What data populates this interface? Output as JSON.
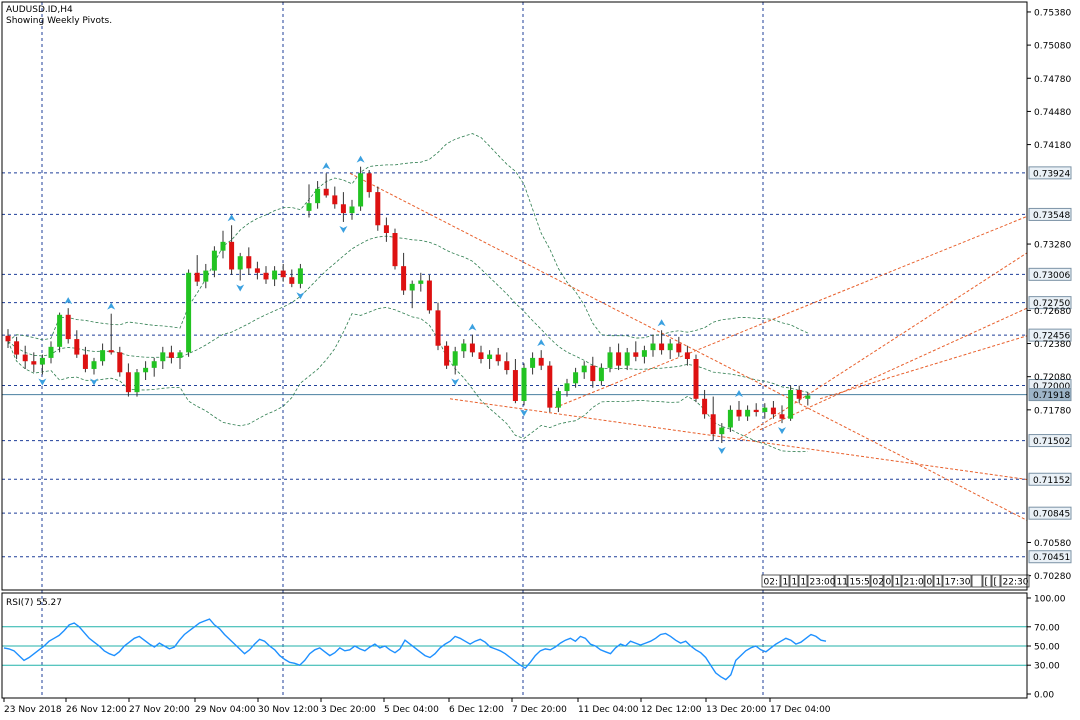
{
  "header": {
    "symbol": "AUDUSD.ID,H4",
    "subtitle": "Showing Weekly Pivots."
  },
  "rsi_panel": {
    "label": "RSI(7) 55.27",
    "ticks": [
      "100.00",
      "70.00",
      "50.00",
      "30.00",
      "0.00"
    ],
    "levels": [
      70,
      50,
      30
    ]
  },
  "price_axis": {
    "ticks": [
      "0.75380",
      "0.75080",
      "0.74780",
      "0.74480",
      "0.74180",
      "0.73280",
      "0.72680",
      "0.72380",
      "0.72080",
      "0.71780",
      "0.70580",
      "0.70280"
    ]
  },
  "pivot_labels": [
    "0.73924",
    "0.73548",
    "0.73006",
    "0.72750",
    "0.72456",
    "0.72000",
    "0.71918",
    "0.71502",
    "0.71152",
    "0.70845",
    "0.70451"
  ],
  "time_labels": [
    "23 Nov 2018",
    "26 Nov 12:00",
    "27 Nov 20:00",
    "29 Nov 04:00",
    "30 Nov 12:00",
    "3 Dec 20:00",
    "5 Dec 04:00",
    "6 Dec 12:00",
    "7 Dec 20:00",
    "11 Dec 04:00",
    "12 Dec 12:00",
    "13 Dec 20:00",
    "17 Dec 04:00"
  ],
  "session_boxes": [
    "02:",
    "1",
    "1",
    "1",
    "23:00",
    "11",
    "15:5",
    "02",
    "0",
    "1",
    "21:0",
    "0",
    "1",
    "17:30",
    "",
    "[",
    "[",
    "22:30"
  ],
  "colors": {
    "bull": "#22c322",
    "bear": "#dd1111",
    "pivot_line": "#1f3f99",
    "bollinger": "#2e7d4f",
    "trend": "#e8602c",
    "rsi_line": "#1e90ff",
    "rsi_level": "#20b2aa",
    "fractal": "#3aa0e0",
    "current_price": "#4a7fa0"
  },
  "chart_data": {
    "type": "candlestick",
    "title": "AUDUSD.ID,H4",
    "subtitle": "Showing Weekly Pivots.",
    "ylim": [
      0.7015,
      0.7547
    ],
    "current_price": 0.71918,
    "pivot_levels": [
      0.73924,
      0.73548,
      0.73006,
      0.7275,
      0.72456,
      0.72,
      0.71502,
      0.71152,
      0.70845,
      0.70451
    ],
    "ohlc": [
      [
        0.7245,
        0.7251,
        0.7234,
        0.724
      ],
      [
        0.724,
        0.7244,
        0.7224,
        0.7228
      ],
      [
        0.7228,
        0.7236,
        0.7215,
        0.7222
      ],
      [
        0.7222,
        0.723,
        0.7212,
        0.7219
      ],
      [
        0.7219,
        0.7228,
        0.721,
        0.7225
      ],
      [
        0.7225,
        0.724,
        0.722,
        0.7235
      ],
      [
        0.7235,
        0.7266,
        0.723,
        0.7264
      ],
      [
        0.7264,
        0.727,
        0.7238,
        0.7242
      ],
      [
        0.7242,
        0.725,
        0.7225,
        0.7228
      ],
      [
        0.7228,
        0.7235,
        0.7212,
        0.7215
      ],
      [
        0.7215,
        0.7225,
        0.721,
        0.7222
      ],
      [
        0.7222,
        0.7238,
        0.7218,
        0.7232
      ],
      [
        0.7232,
        0.7265,
        0.7228,
        0.723
      ],
      [
        0.723,
        0.7235,
        0.7208,
        0.7212
      ],
      [
        0.7212,
        0.722,
        0.719,
        0.7194
      ],
      [
        0.7194,
        0.7215,
        0.719,
        0.7212
      ],
      [
        0.7212,
        0.7222,
        0.7205,
        0.7216
      ],
      [
        0.7216,
        0.7225,
        0.7208,
        0.7222
      ],
      [
        0.7222,
        0.7235,
        0.7215,
        0.723
      ],
      [
        0.723,
        0.7236,
        0.722,
        0.7225
      ],
      [
        0.7225,
        0.7232,
        0.7215,
        0.723
      ],
      [
        0.723,
        0.7305,
        0.7226,
        0.7302
      ],
      [
        0.7302,
        0.7318,
        0.729,
        0.7294
      ],
      [
        0.7294,
        0.731,
        0.7288,
        0.7304
      ],
      [
        0.7304,
        0.7326,
        0.7298,
        0.7322
      ],
      [
        0.7322,
        0.734,
        0.7315,
        0.733
      ],
      [
        0.733,
        0.7345,
        0.73,
        0.7305
      ],
      [
        0.7305,
        0.732,
        0.7295,
        0.7317
      ],
      [
        0.7317,
        0.7325,
        0.73,
        0.7306
      ],
      [
        0.7306,
        0.7312,
        0.7296,
        0.7302
      ],
      [
        0.7302,
        0.7308,
        0.7292,
        0.7296
      ],
      [
        0.7296,
        0.7308,
        0.729,
        0.7304
      ],
      [
        0.7304,
        0.731,
        0.7294,
        0.7298
      ],
      [
        0.7298,
        0.7305,
        0.7289,
        0.7292
      ],
      [
        0.7292,
        0.731,
        0.7288,
        0.7306
      ],
      [
        0.7358,
        0.7382,
        0.7352,
        0.7365
      ],
      [
        0.7365,
        0.7385,
        0.736,
        0.7378
      ],
      [
        0.7378,
        0.7392,
        0.737,
        0.7372
      ],
      [
        0.7372,
        0.738,
        0.736,
        0.7364
      ],
      [
        0.7364,
        0.7375,
        0.7348,
        0.7356
      ],
      [
        0.7356,
        0.7368,
        0.735,
        0.7362
      ],
      [
        0.7362,
        0.7398,
        0.7358,
        0.7392
      ],
      [
        0.7392,
        0.7395,
        0.737,
        0.7375
      ],
      [
        0.7375,
        0.738,
        0.734,
        0.7345
      ],
      [
        0.7345,
        0.7352,
        0.733,
        0.7338
      ],
      [
        0.7338,
        0.7342,
        0.7305,
        0.7308
      ],
      [
        0.7308,
        0.732,
        0.7282,
        0.7286
      ],
      [
        0.7286,
        0.7295,
        0.727,
        0.7292
      ],
      [
        0.7292,
        0.7302,
        0.7285,
        0.7295
      ],
      [
        0.7295,
        0.73,
        0.7265,
        0.7268
      ],
      [
        0.7268,
        0.7275,
        0.7232,
        0.7236
      ],
      [
        0.7236,
        0.724,
        0.7215,
        0.7218
      ],
      [
        0.7218,
        0.7235,
        0.721,
        0.7231
      ],
      [
        0.7231,
        0.7242,
        0.7225,
        0.7238
      ],
      [
        0.7238,
        0.7246,
        0.7226,
        0.723
      ],
      [
        0.723,
        0.7236,
        0.722,
        0.7224
      ],
      [
        0.7224,
        0.7232,
        0.7215,
        0.7228
      ],
      [
        0.7228,
        0.7234,
        0.7218,
        0.7222
      ],
      [
        0.7222,
        0.723,
        0.721,
        0.7214
      ],
      [
        0.7214,
        0.7224,
        0.7184,
        0.7186
      ],
      [
        0.7186,
        0.722,
        0.7182,
        0.7216
      ],
      [
        0.7216,
        0.723,
        0.721,
        0.7225
      ],
      [
        0.7225,
        0.7232,
        0.7214,
        0.7218
      ],
      [
        0.7218,
        0.7222,
        0.7176,
        0.718
      ],
      [
        0.718,
        0.7198,
        0.7176,
        0.7195
      ],
      [
        0.7195,
        0.7206,
        0.719,
        0.7202
      ],
      [
        0.7202,
        0.7216,
        0.7198,
        0.7212
      ],
      [
        0.7212,
        0.7222,
        0.7206,
        0.7218
      ],
      [
        0.7218,
        0.7226,
        0.7198,
        0.7204
      ],
      [
        0.7204,
        0.722,
        0.72,
        0.7216
      ],
      [
        0.7216,
        0.7235,
        0.7212,
        0.723
      ],
      [
        0.723,
        0.7238,
        0.7214,
        0.7218
      ],
      [
        0.7218,
        0.7234,
        0.7214,
        0.723
      ],
      [
        0.723,
        0.724,
        0.7222,
        0.7226
      ],
      [
        0.7226,
        0.7236,
        0.722,
        0.7232
      ],
      [
        0.7232,
        0.7246,
        0.7226,
        0.7238
      ],
      [
        0.7238,
        0.725,
        0.7228,
        0.7232
      ],
      [
        0.7232,
        0.7242,
        0.7224,
        0.7238
      ],
      [
        0.7238,
        0.7244,
        0.7226,
        0.723
      ],
      [
        0.723,
        0.7236,
        0.7218,
        0.7224
      ],
      [
        0.7224,
        0.7228,
        0.7185,
        0.7188
      ],
      [
        0.7188,
        0.7196,
        0.717,
        0.7174
      ],
      [
        0.7174,
        0.719,
        0.715,
        0.7156
      ],
      [
        0.7156,
        0.7166,
        0.7148,
        0.7162
      ],
      [
        0.7162,
        0.7182,
        0.7158,
        0.7178
      ],
      [
        0.7178,
        0.7186,
        0.7168,
        0.7172
      ],
      [
        0.7172,
        0.7182,
        0.7168,
        0.7178
      ],
      [
        0.7178,
        0.7184,
        0.7172,
        0.7176
      ],
      [
        0.7176,
        0.7184,
        0.717,
        0.718
      ],
      [
        0.718,
        0.7186,
        0.717,
        0.7174
      ],
      [
        0.7174,
        0.7182,
        0.7166,
        0.717
      ],
      [
        0.717,
        0.72,
        0.7168,
        0.7196
      ],
      [
        0.7196,
        0.72,
        0.7184,
        0.7188
      ],
      [
        0.7188,
        0.7194,
        0.7182,
        0.7191
      ]
    ],
    "rsi": [
      48,
      47,
      45,
      40,
      35,
      38,
      42,
      46,
      50,
      55,
      58,
      61,
      66,
      72,
      74,
      70,
      64,
      58,
      54,
      50,
      45,
      42,
      40,
      44,
      50,
      54,
      58,
      60,
      56,
      52,
      49,
      53,
      50,
      47,
      49,
      56,
      62,
      66,
      70,
      74,
      76,
      78,
      72,
      68,
      62,
      57,
      52,
      47,
      42,
      46,
      52,
      57,
      55,
      50,
      46,
      40,
      36,
      33,
      32,
      30,
      35,
      42,
      46,
      48,
      44,
      40,
      43,
      48,
      45,
      46,
      50,
      47,
      45,
      49,
      52,
      48,
      50,
      46,
      43,
      47,
      56,
      52,
      48,
      44,
      40,
      38,
      42,
      48,
      52,
      55,
      60,
      58,
      55,
      52,
      55,
      57,
      54,
      49,
      47,
      45,
      42,
      38,
      34,
      30,
      27,
      33,
      40,
      45,
      47,
      46,
      49,
      53,
      56,
      58,
      55,
      60,
      58,
      52,
      50,
      46,
      44,
      42,
      48,
      52,
      50,
      55,
      53,
      51,
      53,
      55,
      58,
      62,
      63,
      60,
      56,
      53,
      55,
      50,
      46,
      43,
      38,
      30,
      22,
      18,
      15,
      20,
      35,
      40,
      45,
      48,
      50,
      46,
      44,
      48,
      52,
      55,
      58,
      56,
      52,
      54,
      58,
      62,
      60,
      56,
      55
    ]
  }
}
